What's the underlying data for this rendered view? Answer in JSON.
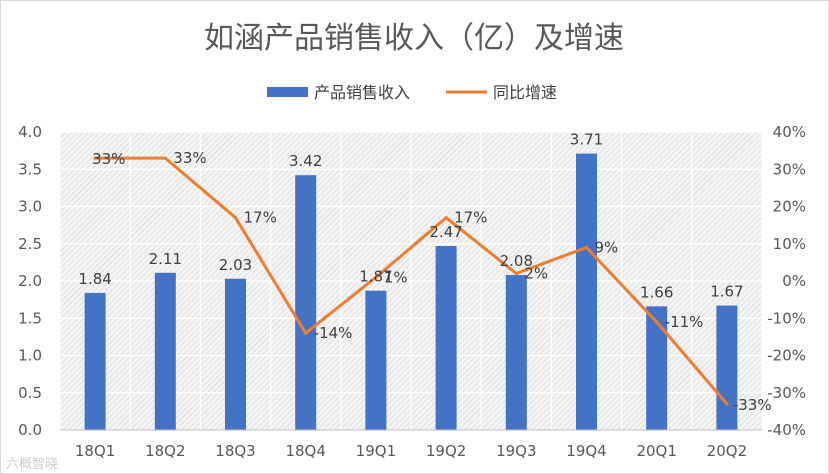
{
  "chart_data": {
    "type": "bar",
    "title": "如涵产品销售收入（亿）及增速",
    "categories": [
      "18Q1",
      "18Q2",
      "18Q3",
      "18Q4",
      "19Q1",
      "19Q2",
      "19Q3",
      "19Q4",
      "20Q1",
      "20Q2"
    ],
    "series": [
      {
        "name": "产品销售收入",
        "type": "bar",
        "axis": "left",
        "color": "#4472C4",
        "values": [
          1.84,
          2.11,
          2.03,
          3.42,
          1.87,
          2.47,
          2.08,
          3.71,
          1.66,
          1.67
        ],
        "value_labels": [
          "1.84",
          "2.11",
          "2.03",
          "3.42",
          "1.87",
          "2.47",
          "2.08",
          "3.71",
          "1.66",
          "1.67"
        ]
      },
      {
        "name": "同比增速",
        "type": "line",
        "axis": "right",
        "color": "#ED7D31",
        "values": [
          33,
          33,
          17,
          -14,
          1,
          17,
          2,
          9,
          -11,
          -33
        ],
        "value_labels": [
          "33%",
          "33%",
          "17%",
          "-14%",
          "1%",
          "17%",
          "2%",
          "9%",
          "-11%",
          "-33%"
        ]
      }
    ],
    "y_left": {
      "lim": [
        0,
        4.0
      ],
      "ticks": [
        "0.0",
        "0.5",
        "1.0",
        "1.5",
        "2.0",
        "2.5",
        "3.0",
        "3.5",
        "4.0"
      ]
    },
    "y_right": {
      "lim": [
        -40,
        40
      ],
      "ticks": [
        "-40%",
        "-30%",
        "-20%",
        "-10%",
        "0%",
        "10%",
        "20%",
        "30%",
        "40%"
      ]
    },
    "legend": {
      "position": "top",
      "entries": [
        "产品销售收入",
        "同比增速"
      ]
    },
    "plot_background": "hatched",
    "grid": true
  },
  "watermark": "六概智晓"
}
